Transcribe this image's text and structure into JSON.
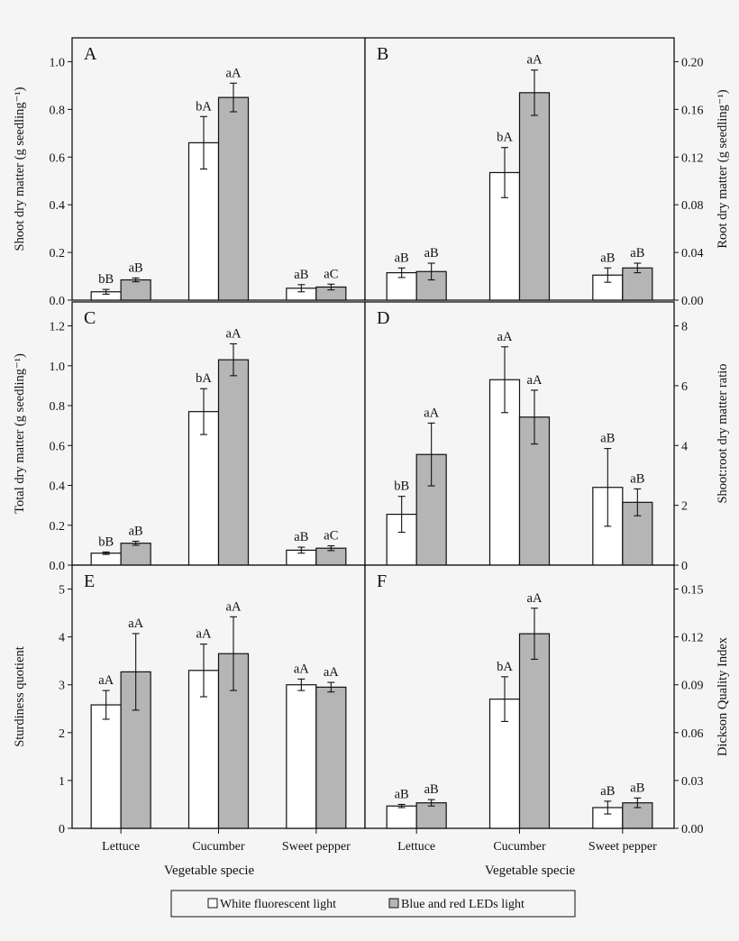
{
  "legend": {
    "items": [
      {
        "label": "White fluorescent light",
        "color": "#ffffff"
      },
      {
        "label": "Blue and red LEDs light",
        "color": "#b5b5b5"
      }
    ]
  },
  "xlabel": "Vegetable specie",
  "categories": [
    "Lettuce",
    "Cucumber",
    "Sweet pepper"
  ],
  "chart_data": [
    {
      "type": "bar",
      "panel": "A",
      "ylabel": "Shoot dry matter (g seedling⁻¹)",
      "ylim": [
        0,
        1.1
      ],
      "yticks": [
        0,
        0.2,
        0.4,
        0.6,
        0.8,
        1.0
      ],
      "ytick_labels": [
        "0.0",
        "0.2",
        "0.4",
        "0.6",
        "0.8",
        "1.0"
      ],
      "categories": [
        "Lettuce",
        "Cucumber",
        "Sweet pepper"
      ],
      "series": [
        {
          "name": "White fluorescent light",
          "values": [
            0.035,
            0.66,
            0.05
          ],
          "errors": [
            0.01,
            0.11,
            0.015
          ],
          "labels": [
            "bB",
            "bA",
            "aB"
          ]
        },
        {
          "name": "Blue and red LEDs light",
          "values": [
            0.085,
            0.85,
            0.055
          ],
          "errors": [
            0.008,
            0.06,
            0.012
          ],
          "labels": [
            "aB",
            "aA",
            "aC"
          ]
        }
      ]
    },
    {
      "type": "bar",
      "panel": "B",
      "ylabel": "Root dry matter (g seedling⁻¹)",
      "ylim": [
        0,
        0.22
      ],
      "yticks": [
        0,
        0.04,
        0.08,
        0.12,
        0.16,
        0.2
      ],
      "ytick_labels": [
        "0.00",
        "0.04",
        "0.08",
        "0.12",
        "0.16",
        "0.20"
      ],
      "categories": [
        "Lettuce",
        "Cucumber",
        "Sweet pepper"
      ],
      "series": [
        {
          "name": "White fluorescent light",
          "values": [
            0.023,
            0.107,
            0.021
          ],
          "errors": [
            0.004,
            0.021,
            0.006
          ],
          "labels": [
            "aB",
            "bA",
            "aB"
          ]
        },
        {
          "name": "Blue and red LEDs light",
          "values": [
            0.024,
            0.174,
            0.027
          ],
          "errors": [
            0.007,
            0.019,
            0.004
          ],
          "labels": [
            "aB",
            "aA",
            "aB"
          ]
        }
      ]
    },
    {
      "type": "bar",
      "panel": "C",
      "ylabel": "Total dry matter (g seedling⁻¹)",
      "ylim": [
        0,
        1.32
      ],
      "yticks": [
        0,
        0.2,
        0.4,
        0.6,
        0.8,
        1.0,
        1.2
      ],
      "ytick_labels": [
        "0.0",
        "0.2",
        "0.4",
        "0.6",
        "0.8",
        "1.0",
        "1.2"
      ],
      "categories": [
        "Lettuce",
        "Cucumber",
        "Sweet pepper"
      ],
      "series": [
        {
          "name": "White fluorescent light",
          "values": [
            0.06,
            0.77,
            0.075
          ],
          "errors": [
            0.006,
            0.115,
            0.015
          ],
          "labels": [
            "bB",
            "bA",
            "aB"
          ]
        },
        {
          "name": "Blue and red LEDs light",
          "values": [
            0.11,
            1.03,
            0.085
          ],
          "errors": [
            0.01,
            0.08,
            0.012
          ],
          "labels": [
            "aB",
            "aA",
            "aC"
          ]
        }
      ]
    },
    {
      "type": "bar",
      "panel": "D",
      "ylabel": "Shoot:root dry matter ratio",
      "ylim": [
        0,
        8.8
      ],
      "yticks": [
        0,
        2,
        4,
        6,
        8
      ],
      "ytick_labels": [
        "0",
        "2",
        "4",
        "6",
        "8"
      ],
      "categories": [
        "Lettuce",
        "Cucumber",
        "Sweet pepper"
      ],
      "series": [
        {
          "name": "White fluorescent light",
          "values": [
            1.7,
            6.2,
            2.6
          ],
          "errors": [
            0.6,
            1.1,
            1.3
          ],
          "labels": [
            "bB",
            "aA",
            "aB"
          ]
        },
        {
          "name": "Blue and red LEDs light",
          "values": [
            3.7,
            4.95,
            2.1
          ],
          "errors": [
            1.05,
            0.9,
            0.45
          ],
          "labels": [
            "aA",
            "aA",
            "aB"
          ]
        }
      ]
    },
    {
      "type": "bar",
      "panel": "E",
      "ylabel": "Sturdiness quotient",
      "ylim": [
        0,
        5.5
      ],
      "yticks": [
        0,
        1,
        2,
        3,
        4,
        5
      ],
      "ytick_labels": [
        "0",
        "1",
        "2",
        "3",
        "4",
        "5"
      ],
      "categories": [
        "Lettuce",
        "Cucumber",
        "Sweet pepper"
      ],
      "series": [
        {
          "name": "White fluorescent light",
          "values": [
            2.58,
            3.3,
            3.0
          ],
          "errors": [
            0.3,
            0.55,
            0.12
          ],
          "labels": [
            "aA",
            "aA",
            "aA"
          ]
        },
        {
          "name": "Blue and red LEDs light",
          "values": [
            3.27,
            3.65,
            2.95
          ],
          "errors": [
            0.8,
            0.77,
            0.1
          ],
          "labels": [
            "aA",
            "aA",
            "aA"
          ]
        }
      ]
    },
    {
      "type": "bar",
      "panel": "F",
      "ylabel": "Dickson Quality Index",
      "ylim": [
        0,
        0.165
      ],
      "yticks": [
        0,
        0.03,
        0.06,
        0.09,
        0.12,
        0.15
      ],
      "ytick_labels": [
        "0.00",
        "0.03",
        "0.06",
        "0.09",
        "0.12",
        "0.15"
      ],
      "categories": [
        "Lettuce",
        "Cucumber",
        "Sweet pepper"
      ],
      "series": [
        {
          "name": "White fluorescent light",
          "values": [
            0.014,
            0.081,
            0.013
          ],
          "errors": [
            0.001,
            0.014,
            0.004
          ],
          "labels": [
            "aB",
            "bA",
            "aB"
          ]
        },
        {
          "name": "Blue and red LEDs light",
          "values": [
            0.016,
            0.122,
            0.016
          ],
          "errors": [
            0.002,
            0.016,
            0.003
          ],
          "labels": [
            "aB",
            "aA",
            "aB"
          ]
        }
      ]
    }
  ]
}
